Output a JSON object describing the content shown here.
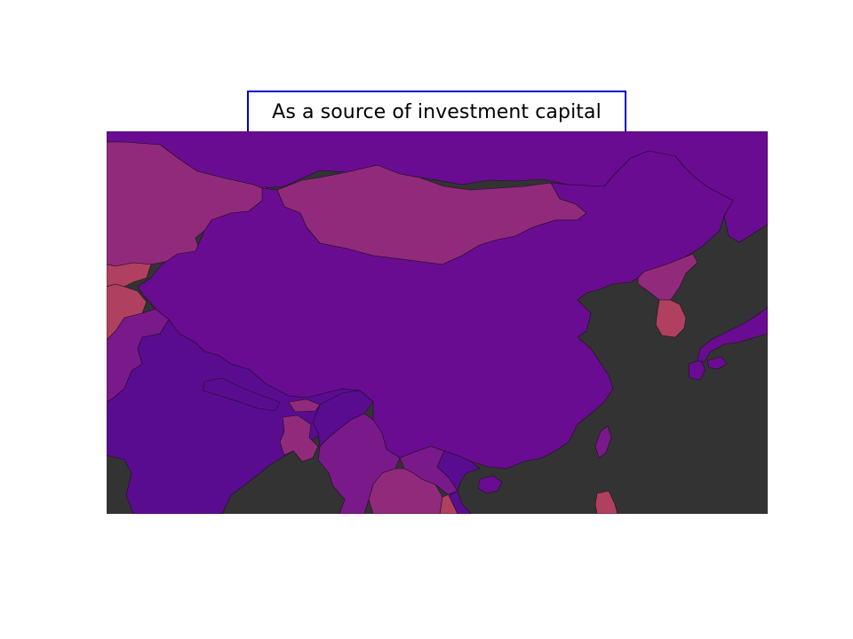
{
  "title": "As a source of investment capital",
  "colors": {
    "title_border": "#0000cc",
    "ocean": "#333333",
    "high": "#6a0c92",
    "mid_high": "#5a0c90",
    "mid": "#7a1a8a",
    "mid_low": "#922a7c",
    "low": "#b0405f"
  },
  "regions": [
    {
      "name": "China",
      "level": "high"
    },
    {
      "name": "Russia",
      "level": "high"
    },
    {
      "name": "Mongolia",
      "level": "mid_low"
    },
    {
      "name": "Kazakhstan",
      "level": "mid_low"
    },
    {
      "name": "North Korea",
      "level": "mid_low"
    },
    {
      "name": "South Korea",
      "level": "low"
    },
    {
      "name": "Japan",
      "level": "high"
    },
    {
      "name": "Taiwan",
      "level": "mid"
    },
    {
      "name": "India",
      "level": "mid_high"
    },
    {
      "name": "Pakistan",
      "level": "mid"
    },
    {
      "name": "Nepal",
      "level": "mid_high"
    },
    {
      "name": "Bangladesh",
      "level": "mid_low"
    },
    {
      "name": "Myanmar",
      "level": "mid"
    },
    {
      "name": "Thailand",
      "level": "mid_low"
    },
    {
      "name": "Laos",
      "level": "mid"
    },
    {
      "name": "Vietnam",
      "level": "mid_high"
    },
    {
      "name": "Philippines",
      "level": "low"
    }
  ]
}
